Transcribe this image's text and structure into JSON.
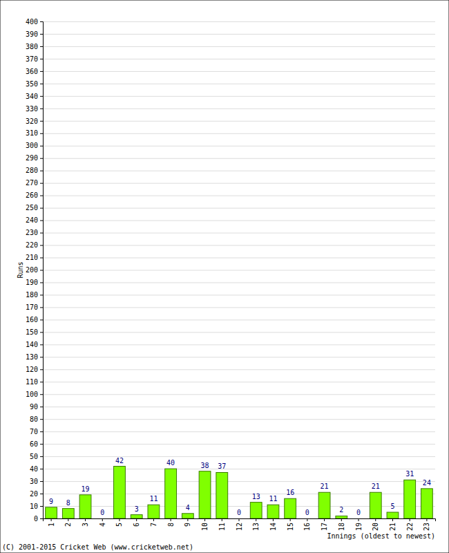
{
  "chart_data": {
    "type": "bar",
    "x_label": "Innings (oldest to newest)",
    "y_label": "Runs",
    "annotations": [
      "(C) 2001-2015 Cricket Web (www.cricketweb.net)"
    ],
    "categories": [
      "1",
      "2",
      "3",
      "4",
      "5",
      "6",
      "7",
      "8",
      "9",
      "10",
      "11",
      "12",
      "13",
      "14",
      "15",
      "16",
      "17",
      "18",
      "19",
      "20",
      "21",
      "22",
      "23"
    ],
    "values": [
      9,
      8,
      19,
      0,
      42,
      3,
      11,
      40,
      4,
      38,
      37,
      0,
      13,
      11,
      16,
      0,
      21,
      2,
      0,
      21,
      5,
      31,
      24
    ],
    "color": "#80ff00",
    "ylim": [
      0,
      400
    ],
    "yticks": [
      0,
      10,
      20,
      30,
      40,
      50,
      60,
      70,
      80,
      90,
      100,
      110,
      120,
      130,
      140,
      150,
      160,
      170,
      180,
      190,
      200,
      210,
      220,
      230,
      240,
      250,
      260,
      270,
      280,
      290,
      300,
      310,
      320,
      330,
      340,
      350,
      360,
      370,
      380,
      390,
      400
    ],
    "grid": true,
    "data_labels": true
  }
}
